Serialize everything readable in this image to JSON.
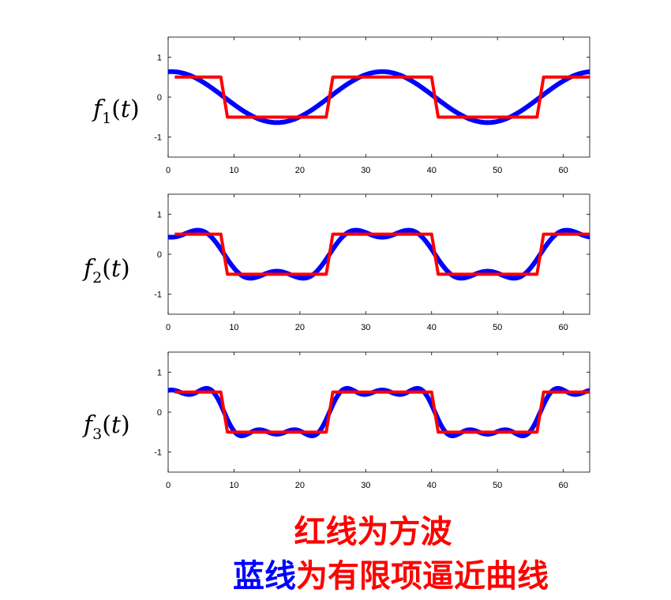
{
  "chart_data": [
    {
      "type": "line",
      "ylabel": {
        "func": "f",
        "sub": "1",
        "arg": "t"
      },
      "xlim": [
        0,
        64
      ],
      "ylim": [
        -1.5,
        1.5
      ],
      "xticks": [
        0,
        10,
        20,
        30,
        40,
        50,
        60
      ],
      "yticks": [
        1,
        0,
        -1
      ],
      "series": [
        {
          "color": "#0000ff",
          "harmonics": 1,
          "x": [
            1,
            5,
            9,
            13,
            17,
            21,
            25,
            29,
            33,
            37,
            41,
            45,
            49,
            53,
            57,
            61,
            64
          ],
          "y": [
            0.64,
            0.48,
            0.09,
            -0.38,
            -0.64,
            -0.57,
            -0.22,
            0.25,
            0.64,
            0.57,
            0.22,
            -0.25,
            -0.64,
            -0.57,
            -0.22,
            0.25,
            0.64
          ]
        },
        {
          "color": "#ff0000",
          "harmonics": 0,
          "x": [
            1,
            8,
            9,
            24,
            25,
            40,
            41,
            56,
            57,
            64
          ],
          "y": [
            0.5,
            0.5,
            -0.5,
            -0.5,
            0.5,
            0.5,
            -0.5,
            -0.5,
            0.5,
            0.5
          ]
        }
      ]
    },
    {
      "type": "line",
      "ylabel": {
        "func": "f",
        "sub": "2",
        "arg": "t"
      },
      "xlim": [
        0,
        64
      ],
      "ylim": [
        -1.5,
        1.5
      ],
      "xticks": [
        0,
        10,
        20,
        30,
        40,
        50,
        60
      ],
      "yticks": [
        1,
        0,
        -1
      ],
      "series": [
        {
          "color": "#0000ff",
          "harmonics": 2,
          "x": [
            1,
            5,
            9,
            13,
            17,
            21,
            25,
            29,
            33,
            37,
            41,
            45,
            49,
            53,
            57,
            61,
            64
          ],
          "y": [
            0.45,
            0.6,
            0.1,
            -0.55,
            -0.42,
            -0.55,
            0.05,
            0.58,
            0.45,
            0.58,
            0.05,
            -0.55,
            -0.42,
            -0.55,
            0.05,
            0.58,
            0.45
          ]
        },
        {
          "color": "#ff0000",
          "harmonics": 0,
          "x": [
            1,
            8,
            9,
            24,
            25,
            40,
            41,
            56,
            57,
            64
          ],
          "y": [
            0.5,
            0.5,
            -0.5,
            -0.5,
            0.5,
            0.5,
            -0.5,
            -0.5,
            0.5,
            0.5
          ]
        }
      ]
    },
    {
      "type": "line",
      "ylabel": {
        "func": "f",
        "sub": "3",
        "arg": "t"
      },
      "xlim": [
        0,
        64
      ],
      "ylim": [
        -1.5,
        1.5
      ],
      "xticks": [
        0,
        10,
        20,
        30,
        40,
        50,
        60
      ],
      "yticks": [
        1,
        0,
        -1
      ],
      "series": [
        {
          "color": "#0000ff",
          "harmonics": 3,
          "x": [
            1,
            5,
            9,
            13,
            17,
            21,
            25,
            29,
            33,
            37,
            41,
            45,
            49,
            53,
            57,
            61,
            64
          ],
          "y": [
            0.55,
            0.6,
            0.0,
            -0.55,
            -0.45,
            -0.55,
            0.0,
            0.55,
            0.45,
            0.55,
            0.0,
            -0.55,
            -0.45,
            -0.55,
            0.0,
            0.55,
            0.55
          ]
        },
        {
          "color": "#ff0000",
          "harmonics": 0,
          "x": [
            1,
            8,
            9,
            24,
            25,
            40,
            41,
            56,
            57,
            64
          ],
          "y": [
            0.5,
            0.5,
            -0.5,
            -0.5,
            0.5,
            0.5,
            -0.5,
            -0.5,
            0.5,
            0.5
          ]
        }
      ]
    }
  ],
  "caption": {
    "line1": "红线为方波",
    "line2_blue": "蓝线",
    "line2_red": "为有限项逼近曲线"
  },
  "colors": {
    "approx": "#0000ff",
    "square": "#ff0000"
  }
}
